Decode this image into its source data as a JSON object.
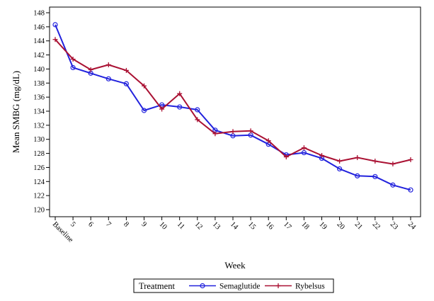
{
  "chart_data": {
    "type": "line",
    "title": "",
    "xlabel": "Week",
    "ylabel": "Mean SMBG (mg/dL)",
    "ylim": [
      120,
      148
    ],
    "yticks": [
      120,
      122,
      124,
      126,
      128,
      130,
      132,
      134,
      136,
      138,
      140,
      142,
      144,
      146,
      148
    ],
    "categories": [
      "Baseline",
      "5",
      "6",
      "7",
      "8",
      "9",
      "10",
      "11",
      "12",
      "13",
      "14",
      "15",
      "16",
      "17",
      "18",
      "19",
      "20",
      "21",
      "22",
      "23",
      "24"
    ],
    "grid": false,
    "legend": {
      "title": "Treatment",
      "placement": "bottom"
    },
    "series": [
      {
        "name": "Semaglutide",
        "color": "#2222dd",
        "marker": "circle",
        "values": [
          146.3,
          140.2,
          139.4,
          138.6,
          137.9,
          134.1,
          134.9,
          134.6,
          134.2,
          131.3,
          130.5,
          130.6,
          129.3,
          127.8,
          128.1,
          127.3,
          125.8,
          124.8,
          124.7,
          123.5,
          122.8
        ]
      },
      {
        "name": "Rybelsus",
        "color": "#aa1133",
        "marker": "plus",
        "values": [
          144.2,
          141.4,
          139.9,
          140.6,
          139.8,
          137.6,
          134.3,
          136.5,
          132.8,
          130.8,
          131.1,
          131.2,
          129.8,
          127.5,
          128.8,
          127.7,
          126.9,
          127.4,
          126.9,
          126.5,
          127.1
        ]
      }
    ]
  }
}
